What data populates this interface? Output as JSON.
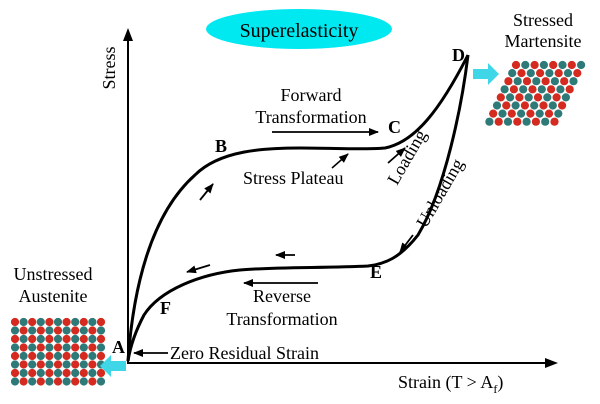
{
  "title": "Superelasticity",
  "axes": {
    "y_label": "Stress",
    "x_label_main": "Strain (T > A",
    "x_label_sub": "f",
    "x_label_close": ")"
  },
  "points": {
    "A": "A",
    "B": "B",
    "C": "C",
    "D": "D",
    "E": "E",
    "F": "F"
  },
  "annotations": {
    "forward_line1": "Forward",
    "forward_line2": "Transformation",
    "stress_plateau": "Stress Plateau",
    "loading": "Loading",
    "unloading": "Unloading",
    "reverse_line1": "Reverse",
    "reverse_line2": "Transformation",
    "zero_residual": "Zero Residual Strain",
    "stressed_line1": "Stressed",
    "stressed_line2": "Martensite",
    "unstressed_line1": "Unstressed",
    "unstressed_line2": "Austenite"
  },
  "colors": {
    "title_ellipse": "#00e8f0",
    "arrow_cyan": "#3fd7e8",
    "atom_red": "#d42a1f",
    "atom_teal": "#2d7a78",
    "curve": "#000000"
  }
}
